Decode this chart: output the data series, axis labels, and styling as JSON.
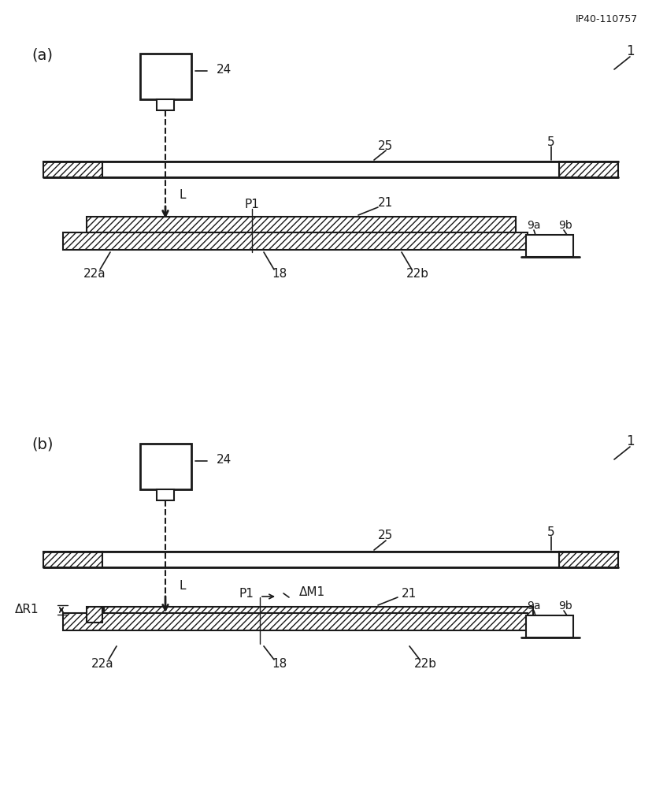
{
  "bg_color": "#ffffff",
  "line_color": "#1a1a1a",
  "patent_id": "IP40-110757",
  "diagram_a_label": "(a)",
  "diagram_b_label": "(b)",
  "ref_1": "1",
  "ref_5": "5",
  "ref_9a": "9a",
  "ref_9b": "9b",
  "ref_18": "18",
  "ref_21": "21",
  "ref_22a": "22a",
  "ref_22b": "22b",
  "ref_24": "24",
  "ref_25": "25",
  "ref_P1": "P1",
  "ref_L": "L",
  "ref_deltaM1": "ΔM1",
  "ref_deltaR1": "ΔR1"
}
